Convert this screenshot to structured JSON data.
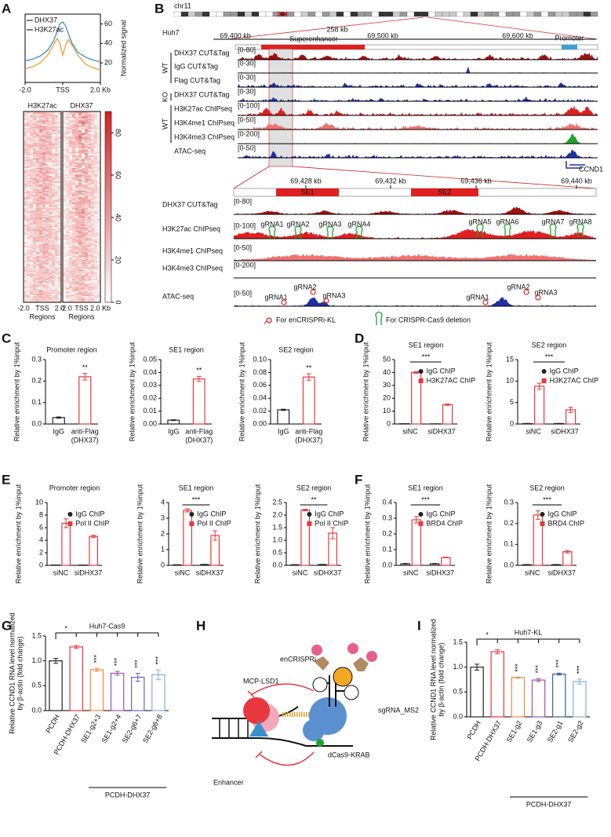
{
  "panel_labels": [
    "A",
    "B",
    "C",
    "D",
    "E",
    "F",
    "G",
    "H",
    "I"
  ],
  "chart_data": [
    {
      "type": "line",
      "ylabel": "Normalized signal",
      "x": [
        -2,
        -1.6,
        -1.2,
        -0.8,
        -0.5,
        -0.3,
        -0.15,
        0,
        0.15,
        0.3,
        0.5,
        0.8,
        1.2,
        1.6,
        2
      ],
      "series": [
        {
          "name": "DHX37",
          "color": "#3a8fd0",
          "values": [
            22,
            24,
            27,
            33,
            42,
            52,
            60,
            62,
            58,
            50,
            40,
            31,
            26,
            23,
            21
          ]
        },
        {
          "name": "H3K27ac",
          "color": "#f0a030",
          "values": [
            14,
            16,
            20,
            28,
            38,
            45,
            40,
            28,
            38,
            44,
            38,
            28,
            19,
            15,
            13
          ]
        }
      ],
      "xlim": [
        -2,
        2
      ],
      "xticks": [
        {
          "value": -2,
          "label": "-2.0"
        },
        {
          "value": 0,
          "label": "TSS"
        },
        {
          "value": 2,
          "label": "2.0 Kb"
        }
      ],
      "ylim": [
        0,
        70
      ],
      "yticks": [
        20,
        40,
        60
      ]
    },
    {
      "type": "bar",
      "title": "Promoter region",
      "ylabel": "Relative enrichment by 1%input",
      "categories": [
        "IgG",
        "anti-Flag"
      ],
      "xlabel": "(DHX37)",
      "values": [
        0.03,
        0.22
      ],
      "errors": [
        0.003,
        0.015
      ],
      "colors": [
        "#222222",
        "#e8383d"
      ],
      "significance": [
        null,
        "**"
      ],
      "ylim": [
        0,
        0.3
      ],
      "yticks": [
        {
          "value": 0,
          "label": "0.0"
        },
        0.1,
        0.2,
        0.3
      ]
    },
    {
      "type": "bar",
      "title": "SE1 region",
      "ylabel": "Relative enrichment by 1%input",
      "categories": [
        "IgG",
        "anti-Flag"
      ],
      "xlabel": "(DHX37)",
      "values": [
        0.003,
        0.035
      ],
      "errors": [
        0.0003,
        0.002
      ],
      "colors": [
        "#222222",
        "#e8383d"
      ],
      "significance": [
        null,
        "**"
      ],
      "ylim": [
        0,
        0.05
      ],
      "yticks": [
        {
          "value": 0,
          "label": "0.00"
        },
        0.01,
        0.02,
        0.03,
        0.04,
        0.05
      ]
    },
    {
      "type": "bar",
      "title": "SE2 region",
      "ylabel": "Relative enrichment by 1%input",
      "categories": [
        "IgG",
        "anti-Flag"
      ],
      "xlabel": "(DHX37)",
      "values": [
        0.022,
        0.073
      ],
      "errors": [
        0.001,
        0.005
      ],
      "colors": [
        "#222222",
        "#e8383d"
      ],
      "significance": [
        null,
        "**"
      ],
      "ylim": [
        0,
        0.1
      ],
      "yticks": [
        {
          "value": 0,
          "label": "0.00"
        },
        0.02,
        0.04,
        0.06,
        0.08,
        {
          "value": 0.1,
          "label": "0.10"
        }
      ]
    },
    {
      "type": "bar",
      "title": "SE1 region",
      "ylabel": "Relative enrichment by 1%input",
      "categories": [
        "siNC",
        "siDHX37"
      ],
      "series": [
        {
          "name": "IgG ChIP",
          "color": "#222222",
          "values": [
            0.2,
            0.1
          ],
          "errors": [
            0.05,
            0.05
          ]
        },
        {
          "name": "H3K27AC ChIP",
          "color": "#e8383d",
          "values": [
            40,
            15
          ],
          "errors": [
            0.6,
            0.5
          ]
        }
      ],
      "significance": "***",
      "ylim": [
        0,
        50
      ],
      "yticks": [
        0,
        10,
        20,
        30,
        40,
        50
      ]
    },
    {
      "type": "bar",
      "title": "SE2 region",
      "ylabel": "Relative enrichment by 1%input",
      "categories": [
        "siNC",
        "siDHX37"
      ],
      "series": [
        {
          "name": "IgG ChIP",
          "color": "#222222",
          "values": [
            0.1,
            0.1
          ],
          "errors": [
            0.03,
            0.03
          ]
        },
        {
          "name": "H3K27AC ChIP",
          "color": "#e8383d",
          "values": [
            8.8,
            3.3
          ],
          "errors": [
            0.7,
            0.6
          ]
        }
      ],
      "significance": "***",
      "ylim": [
        0,
        15
      ],
      "yticks": [
        0,
        5,
        10,
        15
      ]
    },
    {
      "type": "bar",
      "title": "Promoter region",
      "ylabel": "Relative enrichment by 1%input",
      "categories": [
        "siNC",
        "siDHX37"
      ],
      "series": [
        {
          "name": "IgG ChIP",
          "color": "#222222",
          "values": [
            0.05,
            0.05
          ],
          "errors": [
            0.02,
            0.02
          ]
        },
        {
          "name": "Pol II ChIP",
          "color": "#e8383d",
          "values": [
            6.7,
            4.6
          ],
          "errors": [
            0.7,
            0.2
          ]
        }
      ],
      "ylim": [
        0,
        10
      ],
      "yticks": [
        0,
        2,
        4,
        6,
        8,
        10
      ]
    },
    {
      "type": "bar",
      "title": "SE1 region",
      "ylabel": "Relative enrichment by 1%input",
      "categories": [
        "siNC",
        "siDHX37"
      ],
      "series": [
        {
          "name": "IgG ChIP",
          "color": "#222222",
          "values": [
            0.03,
            0.05
          ],
          "errors": [
            0.01,
            0.01
          ]
        },
        {
          "name": "Pol II ChIP",
          "color": "#e8383d",
          "values": [
            3.5,
            1.9
          ],
          "errors": [
            0.1,
            0.3
          ]
        }
      ],
      "significance": "***",
      "ylim": [
        0,
        4
      ],
      "yticks": [
        0,
        1,
        2,
        3,
        4
      ]
    },
    {
      "type": "bar",
      "title": "SE2 region",
      "ylabel": "Relative enrichment by 1%input",
      "categories": [
        "siNC",
        "siDHX37"
      ],
      "series": [
        {
          "name": "IgG ChIP",
          "color": "#222222",
          "values": [
            0.02,
            0.03
          ],
          "errors": [
            0.01,
            0.01
          ]
        },
        {
          "name": "Pol II ChIP",
          "color": "#e8383d",
          "values": [
            2.2,
            1.28
          ],
          "errors": [
            0.03,
            0.22
          ]
        }
      ],
      "significance": "**",
      "ylim": [
        0,
        2.5
      ],
      "yticks": [
        {
          "value": 0,
          "label": "0.0"
        },
        0.5,
        {
          "value": 1,
          "label": "1.0"
        },
        1.5,
        {
          "value": 2,
          "label": "2.0"
        },
        2.5
      ]
    },
    {
      "type": "bar",
      "title": "SE1 region",
      "ylabel": "Relative enrichment by 1%input",
      "categories": [
        "siNC",
        "siDHX37"
      ],
      "series": [
        {
          "name": "IgG ChIP",
          "color": "#222222",
          "values": [
            0.01,
            0.01
          ],
          "errors": [
            0.002,
            0.002
          ]
        },
        {
          "name": "BRD4 ChIP",
          "color": "#e8383d",
          "values": [
            0.29,
            0.05
          ],
          "errors": [
            0.02,
            0.002
          ]
        }
      ],
      "significance": "***",
      "ylim": [
        0,
        0.4
      ],
      "yticks": [
        {
          "value": 0,
          "label": "0.0"
        },
        0.1,
        0.2,
        0.3,
        0.4
      ]
    },
    {
      "type": "bar",
      "title": "SE2 region",
      "ylabel": "Relative enrichment by 1%input",
      "categories": [
        "siNC",
        "siDHX37"
      ],
      "series": [
        {
          "name": "IgG ChIP",
          "color": "#222222",
          "values": [
            0.003,
            0.003
          ],
          "errors": [
            0.001,
            0.001
          ]
        },
        {
          "name": "BRD4 ChIP",
          "color": "#e8383d",
          "values": [
            0.24,
            0.065
          ],
          "errors": [
            0.02,
            0.006
          ]
        }
      ],
      "significance": "***",
      "ylim": [
        0,
        0.3
      ],
      "yticks": [
        {
          "value": 0,
          "label": "0.0"
        },
        0.1,
        0.2,
        0.3
      ]
    },
    {
      "type": "bar",
      "title": "Huh7-Cas9",
      "ylabel": [
        "Relative CCND1 RNA level normalized",
        "by β-actin (fold change)"
      ],
      "categories": [
        "PCDH",
        "PCDH-DHX37",
        "SE1-g2+3",
        "SE1-g2+4",
        "SE2-g6+7",
        "SE2-g6+8"
      ],
      "group_label": "PCDH-DHX37",
      "values": [
        1.0,
        1.28,
        0.82,
        0.75,
        0.67,
        0.72
      ],
      "errors": [
        0.05,
        0.03,
        0.03,
        0.04,
        0.08,
        0.1
      ],
      "colors": [
        "#222222",
        "#e8383d",
        "#f08a3c",
        "#a050b0",
        "#7060c0",
        "#7fb0e0"
      ],
      "significance": [
        null,
        "*",
        "***",
        "***",
        "***",
        "***"
      ],
      "ylim": [
        0,
        1.5
      ],
      "yticks": [
        {
          "value": 0,
          "label": "0.0"
        },
        0.5,
        {
          "value": 1,
          "label": "1.0"
        },
        1.5
      ]
    },
    {
      "type": "bar",
      "title": "Huh7-KL",
      "ylabel": [
        "Relative CCND1 RNA level normalized",
        "by β-actin (fold change)"
      ],
      "categories": [
        "PCDH",
        "PCDH-DHX37",
        "SE1-g2",
        "SE1-g3",
        "SE2-g1",
        "SE2-g2"
      ],
      "group_label": "PCDH-DHX37",
      "values": [
        1.0,
        1.31,
        0.79,
        0.74,
        0.86,
        0.71
      ],
      "errors": [
        0.06,
        0.04,
        0.01,
        0.03,
        0.02,
        0.05
      ],
      "colors": [
        "#222222",
        "#e8383d",
        "#f08a3c",
        "#a050b0",
        "#3060b0",
        "#80b0e0"
      ],
      "significance": [
        null,
        "*",
        "***",
        "***",
        "***",
        "***"
      ],
      "ylim": [
        0,
        1.5
      ],
      "yticks": [
        {
          "value": 0,
          "label": "0.0"
        },
        0.5,
        {
          "value": 1,
          "label": "1.0"
        },
        1.5
      ]
    }
  ],
  "panel_a_heatmap": {
    "columns": [
      "H3K27ac",
      "DHX37"
    ],
    "colorbar_lim": [
      0,
      90
    ],
    "colorbar_ticks": [
      0,
      20,
      40,
      60,
      80
    ],
    "x_labels": [
      "-2.0",
      "TSS",
      "2.0",
      "-2.0",
      "TSS",
      "2.0 Kb"
    ],
    "x_title": "Regions"
  },
  "panel_b": {
    "chromosome": "chr11",
    "cell_line": "Huh7",
    "span": "258 kb",
    "coordinates": [
      "69,400 kb",
      "69,500 kb",
      "69,600 kb"
    ],
    "regions": [
      "Superenhancer",
      "Promoter"
    ],
    "groups": [
      "WT",
      "KO",
      "WT"
    ],
    "tracks": [
      {
        "name": "DHX37 CUT&Tag",
        "range": "[0-80]",
        "color": "#a01010"
      },
      {
        "name": "IgG CUT&Tag",
        "range": "[0-30]",
        "color": "#2030a0"
      },
      {
        "name": "Flag CUT&Tag",
        "range": "[0-30]",
        "color": "#2030a0"
      },
      {
        "name": "DHX37 CUT&Tag",
        "range": "[0-30]",
        "color": "#2030a0"
      },
      {
        "name": "H3K27ac ChIPseq",
        "range": "[0-100]",
        "color": "#e02020"
      },
      {
        "name": "H3K4me1 ChIPseq",
        "range": "[0-50]",
        "color": "#f07070"
      },
      {
        "name": "H3K4me3 ChIPseq",
        "range": "[0-200]",
        "color": "#20a030"
      },
      {
        "name": "ATAC-seq",
        "range": "[0-50]",
        "color": "#2030a0"
      }
    ],
    "gene": "CCND1",
    "zoom_coordinates": [
      "69,428 kb",
      "69,432 kb",
      "69,436 kb",
      "69,440 kb"
    ],
    "zoom_regions": [
      "SE1",
      "SE2"
    ],
    "zoom_tracks": [
      {
        "name": "DHX37 CUT&Tag",
        "range": "[0-80]",
        "color": "#a01010"
      },
      {
        "name": "H3K27ac ChIPseq",
        "range": "[0-100]",
        "color": "#e02020"
      },
      {
        "name": "H3K4me1 ChIPseq",
        "range": "[0-50]",
        "color": "#f07070"
      },
      {
        "name": "H3K4me3 ChIPseq",
        "range": "[0-200]",
        "color": "#20a030"
      },
      {
        "name": "ATAC-seq",
        "range": "[0-50]",
        "color": "#2030a0"
      }
    ],
    "crispr_cas9_grnas": [
      "gRNA1",
      "gRNA2",
      "gRNA3",
      "gRNA4",
      "gRNA5",
      "gRNA6",
      "gRNA7",
      "gRNA8"
    ],
    "encrispri_grnas": [
      "gRNA1",
      "gRNA2",
      "gRNA3",
      "gRNA1",
      "gRNA2",
      "gRNA3"
    ],
    "legend": [
      "For enCRISPRi-KL",
      "For CRISPR-Cas9 deletion"
    ]
  },
  "panel_h": {
    "system": "enCRISPRi",
    "effector": "MCP-LSD1",
    "guide": "sgRNA_MS2",
    "dcas9": "dCas9-KRAB",
    "element": "Enhancer"
  }
}
